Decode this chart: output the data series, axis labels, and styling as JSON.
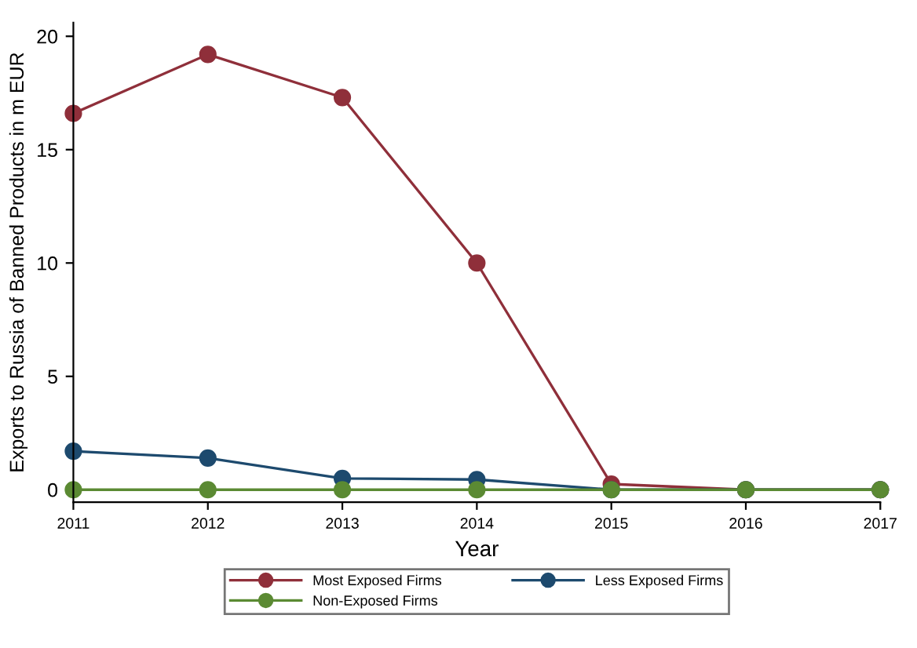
{
  "chart_data": {
    "type": "line",
    "xlabel": "Year",
    "ylabel": "Exports to Russia of Banned Products in m EUR",
    "x": [
      2011,
      2012,
      2013,
      2014,
      2015,
      2016,
      2017
    ],
    "series": [
      {
        "name": "Most Exposed Firms",
        "color": "#8f2f3a",
        "values": [
          16.6,
          19.2,
          17.3,
          10.0,
          0.25,
          0,
          0
        ]
      },
      {
        "name": "Less Exposed Firms",
        "color": "#1d4a6e",
        "values": [
          1.7,
          1.4,
          0.5,
          0.45,
          0,
          0,
          0
        ]
      },
      {
        "name": "Non-Exposed Firms",
        "color": "#5b8a33",
        "values": [
          0,
          0,
          0,
          0,
          0,
          0,
          0
        ]
      }
    ],
    "xlim": [
      2011,
      2017
    ],
    "xticks": [
      2011,
      2012,
      2013,
      2014,
      2015,
      2016,
      2017
    ],
    "ylim": [
      -0.55,
      20.6
    ],
    "yticks": [
      0,
      5,
      10,
      15,
      20
    ],
    "marker": "circle",
    "line_style": "solid",
    "grid": false,
    "legend": "bottom"
  }
}
